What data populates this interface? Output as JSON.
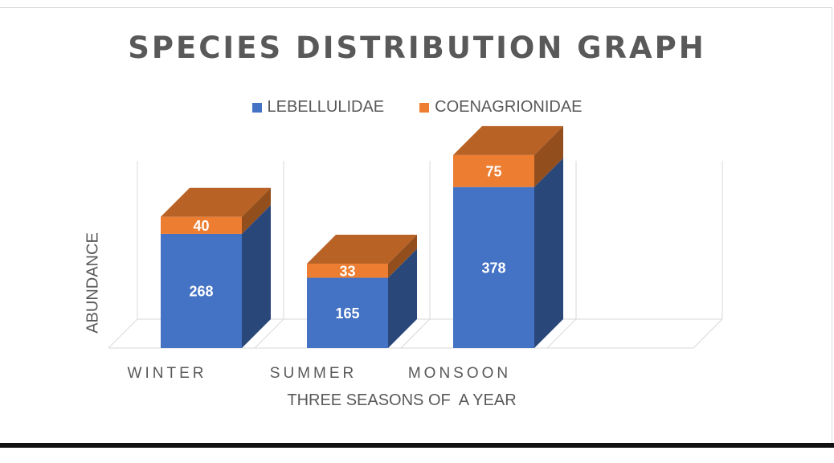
{
  "chart_data": {
    "type": "bar",
    "stacked": true,
    "three_d": true,
    "title": "SPECIES DISTRIBUTION GRAPH",
    "xlabel": "THREE SEASONS OF  A YEAR",
    "ylabel": "ABUNDANCE",
    "categories": [
      "WINTER",
      "SUMMER",
      "MONSOON"
    ],
    "series": [
      {
        "name": "LEBELLULIDAE",
        "color": "#4472c4",
        "values": [
          268,
          165,
          378
        ]
      },
      {
        "name": "COENAGRIONIDAE",
        "color": "#ed7d31",
        "values": [
          40,
          33,
          75
        ]
      }
    ],
    "legend_position": "top",
    "grid": true
  }
}
